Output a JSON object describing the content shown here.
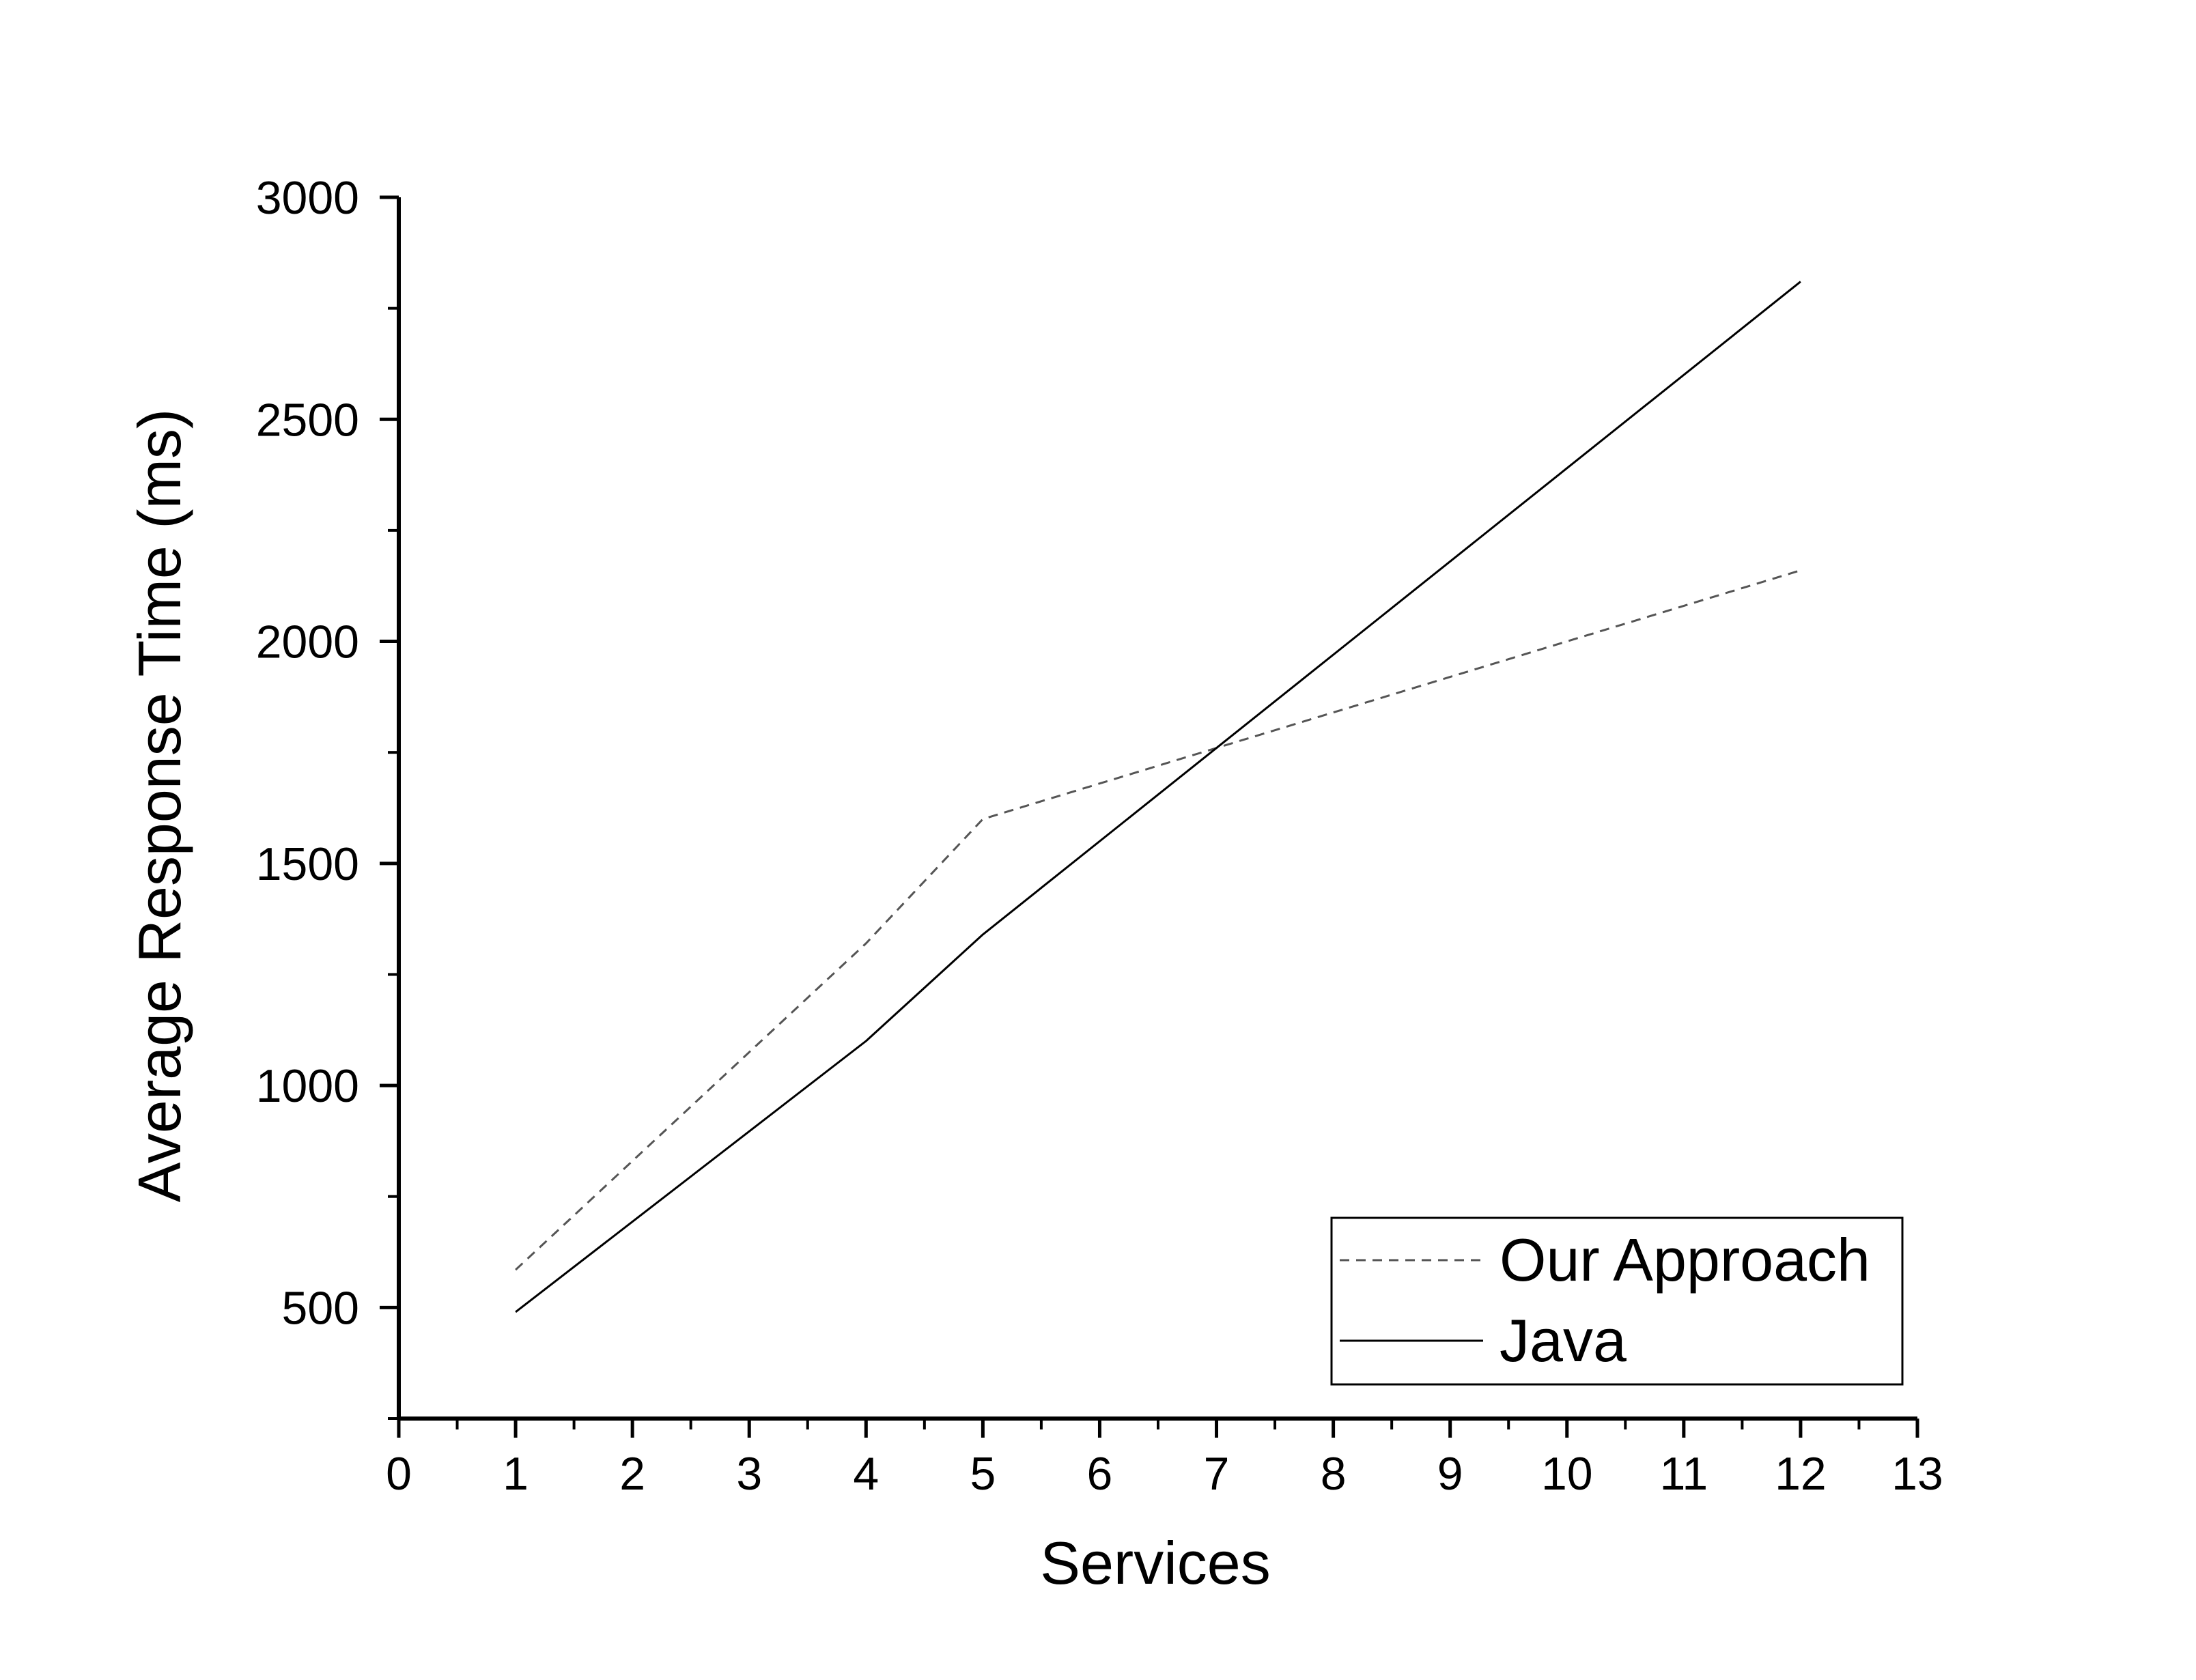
{
  "chart_data": {
    "type": "line",
    "title": "",
    "xlabel": "Services",
    "ylabel": "Average Response Time (ms)",
    "xlim": [
      0,
      13
    ],
    "ylim": [
      250,
      3000
    ],
    "x_ticks": [
      "0",
      "1",
      "2",
      "3",
      "4",
      "5",
      "6",
      "7",
      "8",
      "9",
      "10",
      "11",
      "12",
      "13"
    ],
    "y_ticks": [
      "500",
      "1000",
      "1500",
      "2000",
      "2500",
      "3000"
    ],
    "grid": false,
    "legend_position": "bottom-right",
    "series": [
      {
        "name": "Our Approach",
        "style": "dashed",
        "color": "#555555",
        "x": [
          1,
          4,
          5,
          7,
          12
        ],
        "y": [
          585,
          1320,
          1600,
          1760,
          2160
        ]
      },
      {
        "name": "Java",
        "style": "solid",
        "color": "#000000",
        "x": [
          1,
          4,
          5,
          7,
          12
        ],
        "y": [
          490,
          1100,
          1340,
          1760,
          2810
        ]
      }
    ]
  }
}
